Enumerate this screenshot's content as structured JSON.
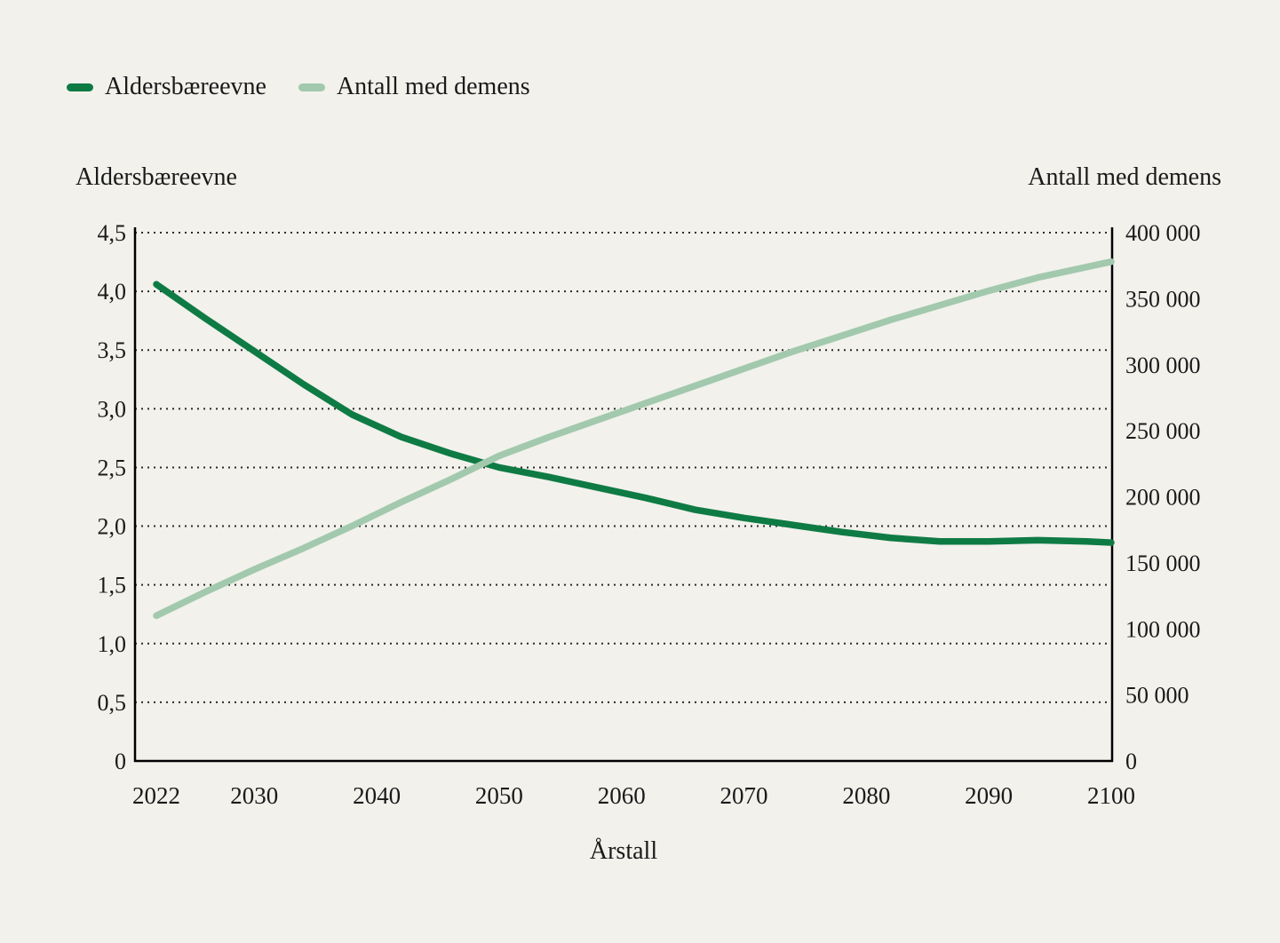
{
  "legend": {
    "items": [
      {
        "label": "Aldersbæreevne",
        "color": "#0f7b44"
      },
      {
        "label": "Antall med demens",
        "color": "#a2c9ad"
      }
    ]
  },
  "left_axis_title": "Aldersbæreevne",
  "right_axis_title": "Antall med demens",
  "x_axis_title": "Årstall",
  "colors": {
    "background": "#f2f1ec",
    "dark_green": "#0f7b44",
    "light_green": "#a2c9ad",
    "axis": "#000000",
    "gridline": "#2a2a2a",
    "text": "#1a1a1a"
  },
  "chart_data": {
    "type": "line",
    "title": "",
    "xlabel": "Årstall",
    "x_range": [
      2022,
      2100
    ],
    "x_ticks": [
      {
        "v": 2022,
        "label": "2022"
      },
      {
        "v": 2030,
        "label": "2030"
      },
      {
        "v": 2040,
        "label": "2040"
      },
      {
        "v": 2050,
        "label": "2050"
      },
      {
        "v": 2060,
        "label": "2060"
      },
      {
        "v": 2070,
        "label": "2070"
      },
      {
        "v": 2080,
        "label": "2080"
      },
      {
        "v": 2090,
        "label": "2090"
      },
      {
        "v": 2100,
        "label": "2100"
      }
    ],
    "left_axis": {
      "title": "Aldersbæreevne",
      "min": 0,
      "max": 4.5,
      "ticks": [
        {
          "v": 0,
          "label": "0"
        },
        {
          "v": 0.5,
          "label": "0,5"
        },
        {
          "v": 1.0,
          "label": "1,0"
        },
        {
          "v": 1.5,
          "label": "1,5"
        },
        {
          "v": 2.0,
          "label": "2,0"
        },
        {
          "v": 2.5,
          "label": "2,5"
        },
        {
          "v": 3.0,
          "label": "3,0"
        },
        {
          "v": 3.5,
          "label": "3,5"
        },
        {
          "v": 4.0,
          "label": "4,0"
        },
        {
          "v": 4.5,
          "label": "4,5"
        }
      ]
    },
    "right_axis": {
      "title": "Antall med demens",
      "min": 0,
      "max": 400000,
      "ticks": [
        {
          "v": 0,
          "label": "0"
        },
        {
          "v": 50000,
          "label": "50 000"
        },
        {
          "v": 100000,
          "label": "100 000"
        },
        {
          "v": 150000,
          "label": "150 000"
        },
        {
          "v": 200000,
          "label": "200 000"
        },
        {
          "v": 250000,
          "label": "250 000"
        },
        {
          "v": 300000,
          "label": "300 000"
        },
        {
          "v": 350000,
          "label": "350 000"
        },
        {
          "v": 400000,
          "label": "400 000"
        }
      ]
    },
    "x": [
      2022,
      2026,
      2030,
      2034,
      2038,
      2042,
      2046,
      2050,
      2054,
      2058,
      2062,
      2066,
      2070,
      2074,
      2078,
      2082,
      2086,
      2090,
      2094,
      2098,
      2100
    ],
    "series": [
      {
        "name": "Aldersbæreevne",
        "axis": "left",
        "color": "#0f7b44",
        "values": [
          4.06,
          3.77,
          3.49,
          3.21,
          2.95,
          2.76,
          2.62,
          2.5,
          2.42,
          2.33,
          2.24,
          2.14,
          2.07,
          2.01,
          1.95,
          1.9,
          1.87,
          1.87,
          1.88,
          1.87,
          1.86
        ]
      },
      {
        "name": "Antall med demens",
        "axis": "right",
        "color": "#a2c9ad",
        "values": [
          110000,
          128000,
          145000,
          161000,
          178000,
          196000,
          213000,
          231000,
          245000,
          258000,
          271000,
          284000,
          297000,
          310000,
          322000,
          334000,
          345000,
          356000,
          366000,
          374000,
          378000
        ]
      }
    ],
    "grid": "dotted horizontal lines at each left-axis tick",
    "legend_position": "top-left"
  }
}
